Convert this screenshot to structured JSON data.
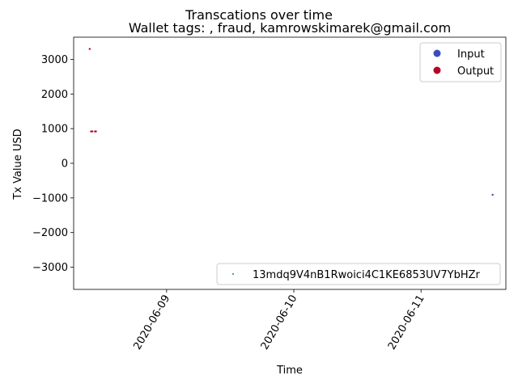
{
  "chart_data": {
    "type": "scatter",
    "title": "Transcations over time",
    "subtitle": "Wallet tags: , fraud, kamrowskimarek@gmail.com",
    "xlabel": "Time",
    "ylabel": "Tx Value USD",
    "x_ticks": [
      "2020-06-09",
      "2020-06-10",
      "2020-06-11"
    ],
    "y_ticks": [
      3000,
      2000,
      1000,
      0,
      -1000,
      -2000,
      -3000
    ],
    "xlim": [
      "2020-06-08T06:28",
      "2020-06-11T16:00"
    ],
    "ylim": [
      -3640,
      3640
    ],
    "grid": false,
    "legend_top": {
      "placement": "top-right",
      "entries": [
        {
          "label": "Input",
          "color": "#3b4cc0"
        },
        {
          "label": "Output",
          "color": "#b40426"
        }
      ]
    },
    "legend_bottom": {
      "placement": "bottom-right",
      "entries": [
        {
          "label": "13mdq9V4nB1Rwoici4C1KE6853UV7YbHZr",
          "color": "#1f77b4"
        }
      ]
    },
    "series": [
      {
        "name": "Output",
        "color": "#b40426",
        "points": [
          {
            "x": "2020-06-08T09:30",
            "y": 3300
          },
          {
            "x": "2020-06-08T09:45",
            "y": 920
          },
          {
            "x": "2020-06-08T10:00",
            "y": 920
          },
          {
            "x": "2020-06-08T10:30",
            "y": 920
          },
          {
            "x": "2020-06-08T10:40",
            "y": 920
          }
        ]
      },
      {
        "name": "Input",
        "color": "#3b4cc0",
        "points": [
          {
            "x": "2020-06-11T13:30",
            "y": -910
          }
        ]
      }
    ]
  }
}
